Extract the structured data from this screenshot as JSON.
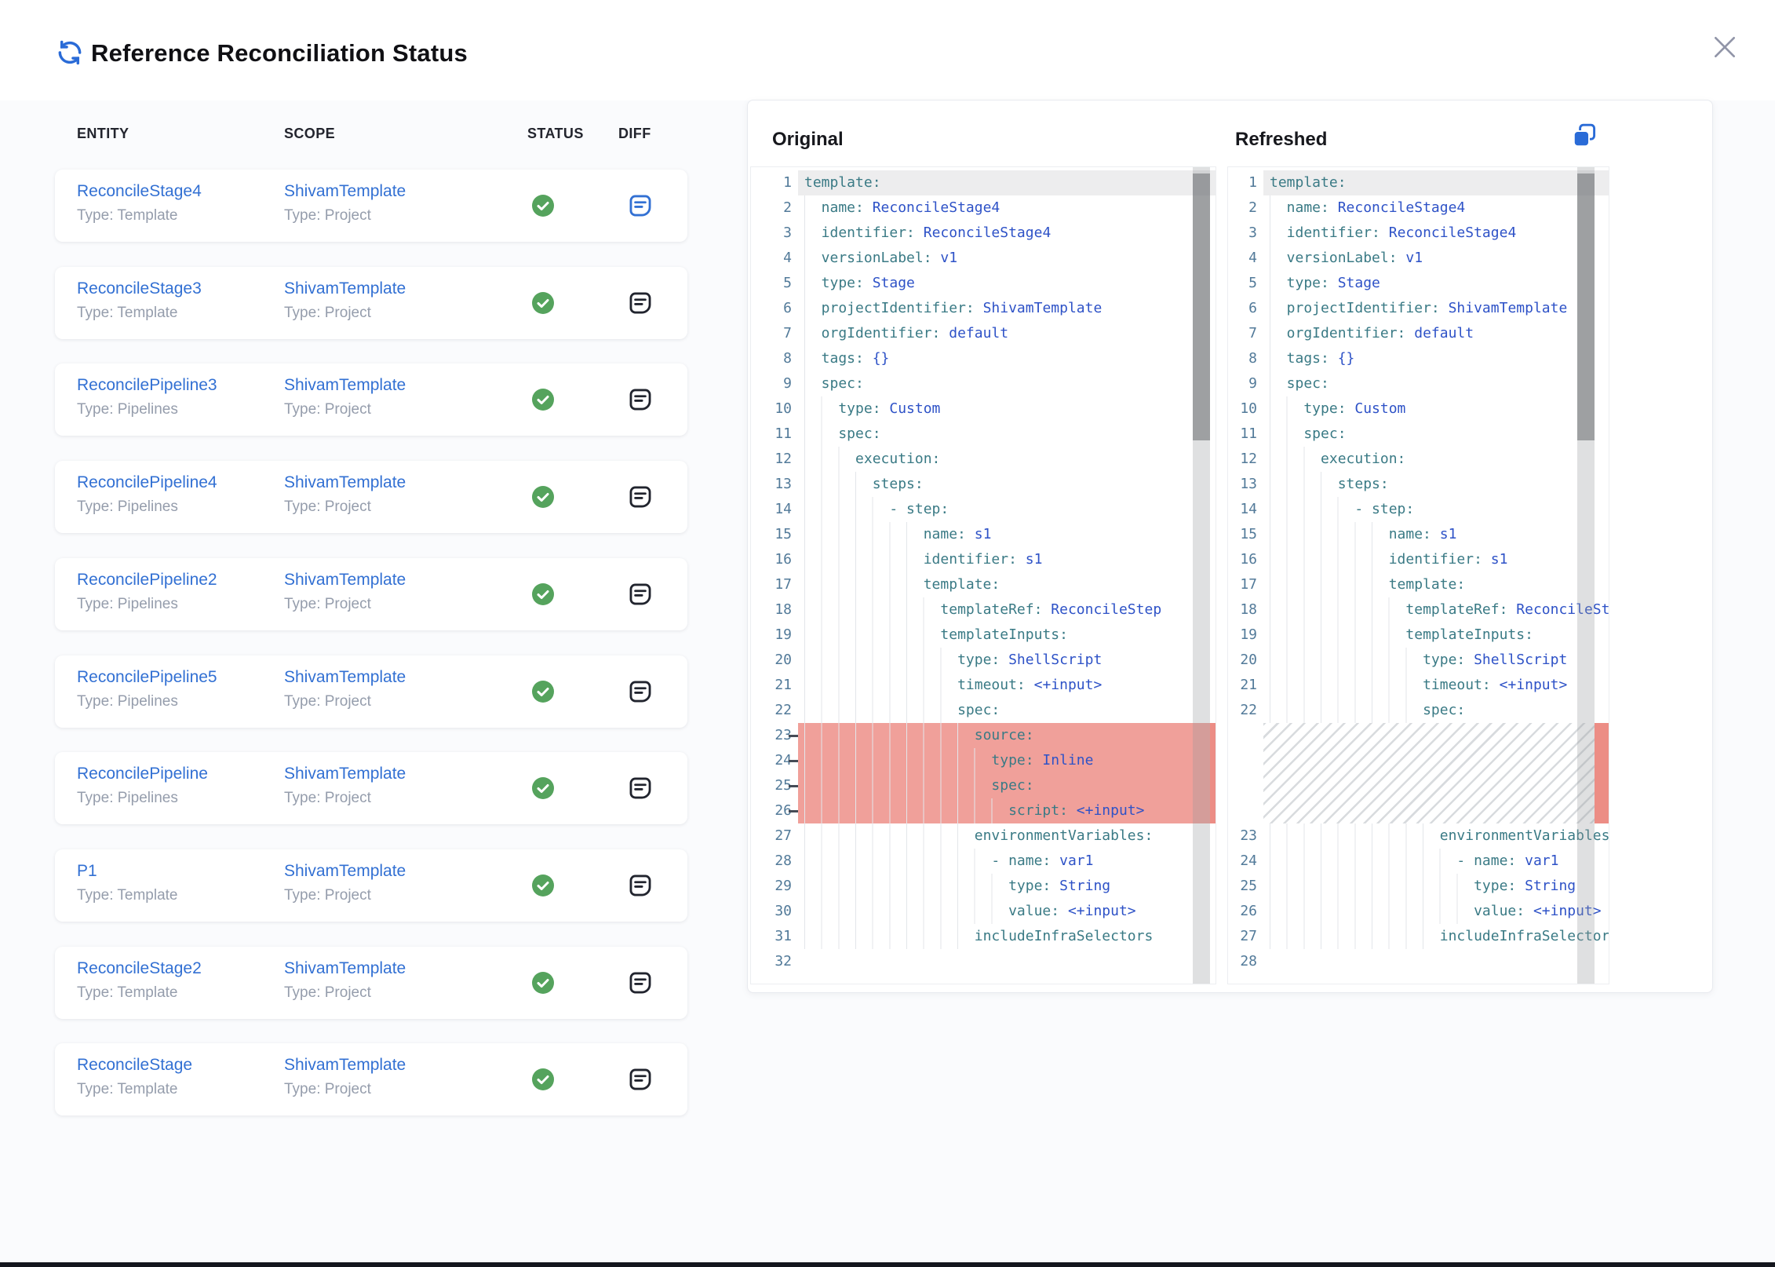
{
  "modal": {
    "title": "Reference Reconciliation Status"
  },
  "table": {
    "columns": [
      "ENTITY",
      "SCOPE",
      "STATUS",
      "DIFF"
    ],
    "rows": [
      {
        "entity": "ReconcileStage4",
        "entity_type": "Type: Template",
        "scope": "ShivamTemplate",
        "scope_type": "Type: Project",
        "status": "success",
        "diff_active": true
      },
      {
        "entity": "ReconcileStage3",
        "entity_type": "Type: Template",
        "scope": "ShivamTemplate",
        "scope_type": "Type: Project",
        "status": "success",
        "diff_active": false
      },
      {
        "entity": "ReconcilePipeline3",
        "entity_type": "Type: Pipelines",
        "scope": "ShivamTemplate",
        "scope_type": "Type: Project",
        "status": "success",
        "diff_active": false
      },
      {
        "entity": "ReconcilePipeline4",
        "entity_type": "Type: Pipelines",
        "scope": "ShivamTemplate",
        "scope_type": "Type: Project",
        "status": "success",
        "diff_active": false
      },
      {
        "entity": "ReconcilePipeline2",
        "entity_type": "Type: Pipelines",
        "scope": "ShivamTemplate",
        "scope_type": "Type: Project",
        "status": "success",
        "diff_active": false
      },
      {
        "entity": "ReconcilePipeline5",
        "entity_type": "Type: Pipelines",
        "scope": "ShivamTemplate",
        "scope_type": "Type: Project",
        "status": "success",
        "diff_active": false
      },
      {
        "entity": "ReconcilePipeline",
        "entity_type": "Type: Pipelines",
        "scope": "ShivamTemplate",
        "scope_type": "Type: Project",
        "status": "success",
        "diff_active": false
      },
      {
        "entity": "P1",
        "entity_type": "Type: Template",
        "scope": "ShivamTemplate",
        "scope_type": "Type: Project",
        "status": "success",
        "diff_active": false
      },
      {
        "entity": "ReconcileStage2",
        "entity_type": "Type: Template",
        "scope": "ShivamTemplate",
        "scope_type": "Type: Project",
        "status": "success",
        "diff_active": false
      },
      {
        "entity": "ReconcileStage",
        "entity_type": "Type: Template",
        "scope": "ShivamTemplate",
        "scope_type": "Type: Project",
        "status": "success",
        "diff_active": false
      }
    ]
  },
  "diff": {
    "original_title": "Original",
    "refreshed_title": "Refreshed",
    "original_lines": [
      {
        "n": 1,
        "ind": 0,
        "key": "template:"
      },
      {
        "n": 2,
        "ind": 2,
        "key": "name:",
        "val": "ReconcileStage4"
      },
      {
        "n": 3,
        "ind": 2,
        "key": "identifier:",
        "val": "ReconcileStage4"
      },
      {
        "n": 4,
        "ind": 2,
        "key": "versionLabel:",
        "val": "v1"
      },
      {
        "n": 5,
        "ind": 2,
        "key": "type:",
        "val": "Stage"
      },
      {
        "n": 6,
        "ind": 2,
        "key": "projectIdentifier:",
        "val": "ShivamTemplate"
      },
      {
        "n": 7,
        "ind": 2,
        "key": "orgIdentifier:",
        "val": "default"
      },
      {
        "n": 8,
        "ind": 2,
        "key": "tags:",
        "val": "{}"
      },
      {
        "n": 9,
        "ind": 2,
        "key": "spec:"
      },
      {
        "n": 10,
        "ind": 4,
        "key": "type:",
        "val": "Custom"
      },
      {
        "n": 11,
        "ind": 4,
        "key": "spec:"
      },
      {
        "n": 12,
        "ind": 6,
        "key": "execution:"
      },
      {
        "n": 13,
        "ind": 8,
        "key": "steps:"
      },
      {
        "n": 14,
        "ind": 10,
        "key": "- step:"
      },
      {
        "n": 15,
        "ind": 14,
        "key": "name:",
        "val": "s1"
      },
      {
        "n": 16,
        "ind": 14,
        "key": "identifier:",
        "val": "s1"
      },
      {
        "n": 17,
        "ind": 14,
        "key": "template:"
      },
      {
        "n": 18,
        "ind": 16,
        "key": "templateRef:",
        "val": "ReconcileStep"
      },
      {
        "n": 19,
        "ind": 16,
        "key": "templateInputs:"
      },
      {
        "n": 20,
        "ind": 18,
        "key": "type:",
        "val": "ShellScript"
      },
      {
        "n": 21,
        "ind": 18,
        "key": "timeout:",
        "val": "<+input>"
      },
      {
        "n": 22,
        "ind": 18,
        "key": "spec:"
      },
      {
        "n": 23,
        "ind": 20,
        "key": "source:",
        "removed": true
      },
      {
        "n": 24,
        "ind": 22,
        "key": "type:",
        "val": "Inline",
        "removed": true
      },
      {
        "n": 25,
        "ind": 22,
        "key": "spec:",
        "removed": true
      },
      {
        "n": 26,
        "ind": 24,
        "key": "script:",
        "val": "<+input>",
        "removed": true
      },
      {
        "n": 27,
        "ind": 20,
        "key": "environmentVariables:"
      },
      {
        "n": 28,
        "ind": 22,
        "key": "- name:",
        "val": "var1"
      },
      {
        "n": 29,
        "ind": 24,
        "key": "type:",
        "val": "String"
      },
      {
        "n": 30,
        "ind": 24,
        "key": "value:",
        "val": "<+input>"
      },
      {
        "n": 31,
        "ind": 20,
        "key": "includeInfraSelectors"
      },
      {
        "n": 32,
        "ind": 0,
        "key": ""
      }
    ],
    "refreshed_lines": [
      {
        "n": 1,
        "ind": 0,
        "key": "template:"
      },
      {
        "n": 2,
        "ind": 2,
        "key": "name:",
        "val": "ReconcileStage4"
      },
      {
        "n": 3,
        "ind": 2,
        "key": "identifier:",
        "val": "ReconcileStage4"
      },
      {
        "n": 4,
        "ind": 2,
        "key": "versionLabel:",
        "val": "v1"
      },
      {
        "n": 5,
        "ind": 2,
        "key": "type:",
        "val": "Stage"
      },
      {
        "n": 6,
        "ind": 2,
        "key": "projectIdentifier:",
        "val": "ShivamTemplate"
      },
      {
        "n": 7,
        "ind": 2,
        "key": "orgIdentifier:",
        "val": "default"
      },
      {
        "n": 8,
        "ind": 2,
        "key": "tags:",
        "val": "{}"
      },
      {
        "n": 9,
        "ind": 2,
        "key": "spec:"
      },
      {
        "n": 10,
        "ind": 4,
        "key": "type:",
        "val": "Custom"
      },
      {
        "n": 11,
        "ind": 4,
        "key": "spec:"
      },
      {
        "n": 12,
        "ind": 6,
        "key": "execution:"
      },
      {
        "n": 13,
        "ind": 8,
        "key": "steps:"
      },
      {
        "n": 14,
        "ind": 10,
        "key": "- step:"
      },
      {
        "n": 15,
        "ind": 14,
        "key": "name:",
        "val": "s1"
      },
      {
        "n": 16,
        "ind": 14,
        "key": "identifier:",
        "val": "s1"
      },
      {
        "n": 17,
        "ind": 14,
        "key": "template:"
      },
      {
        "n": 18,
        "ind": 16,
        "key": "templateRef:",
        "val": "ReconcileStep"
      },
      {
        "n": 19,
        "ind": 16,
        "key": "templateInputs:"
      },
      {
        "n": 20,
        "ind": 18,
        "key": "type:",
        "val": "ShellScript"
      },
      {
        "n": 21,
        "ind": 18,
        "key": "timeout:",
        "val": "<+input>"
      },
      {
        "n": 22,
        "ind": 18,
        "key": "spec:"
      },
      {
        "hatch": true
      },
      {
        "n": 23,
        "ind": 20,
        "key": "environmentVariables:"
      },
      {
        "n": 24,
        "ind": 22,
        "key": "- name:",
        "val": "var1"
      },
      {
        "n": 25,
        "ind": 24,
        "key": "type:",
        "val": "String"
      },
      {
        "n": 26,
        "ind": 24,
        "key": "value:",
        "val": "<+input>"
      },
      {
        "n": 27,
        "ind": 20,
        "key": "includeInfraSelectors"
      },
      {
        "n": 28,
        "ind": 0,
        "key": ""
      }
    ]
  },
  "colors": {
    "accent_blue": "#2a6bd7",
    "link_blue": "#3270d3",
    "green": "#55a35d",
    "key_teal": "#3a7a85",
    "value_blue": "#2e52c7",
    "line_number": "#527a99",
    "removed_bg": "#f0a09a",
    "ruler_red": "#ec8d85",
    "sub_gray": "#959dac",
    "icon_dark": "#21242e",
    "close_gray": "#9195a8",
    "hatch_gray": "#d8dbde",
    "highlight_line": "#ededee",
    "page_bg": "#fafbfd",
    "bottom_bar": "#14161d"
  },
  "icons": {
    "refresh": "refresh-icon",
    "close": "close-icon",
    "copy": "copy-icon",
    "status_success": "check-circle-icon",
    "diff": "diff-note-icon"
  }
}
